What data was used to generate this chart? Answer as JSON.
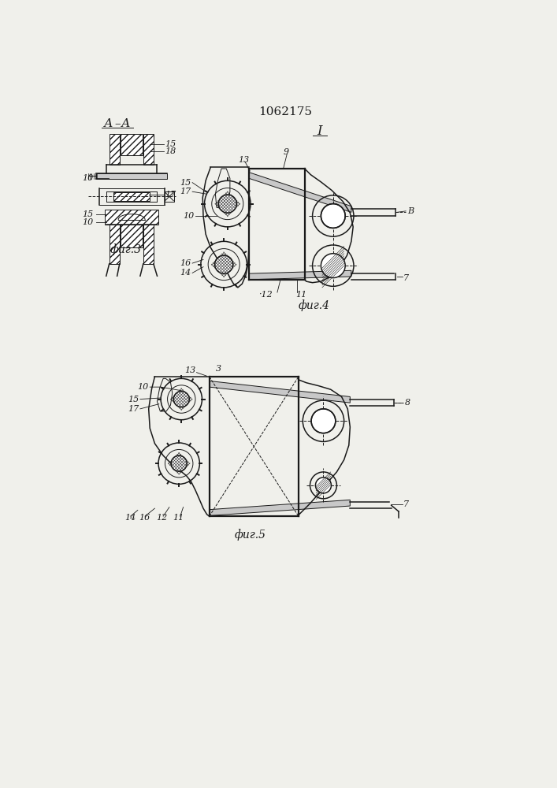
{
  "title": "1062175",
  "background": "#f0f0eb",
  "line_color": "#1a1a1a",
  "fig3_caption": "фиг.3",
  "fig4_caption": "фиг.4",
  "fig5_caption": "фиг.5"
}
